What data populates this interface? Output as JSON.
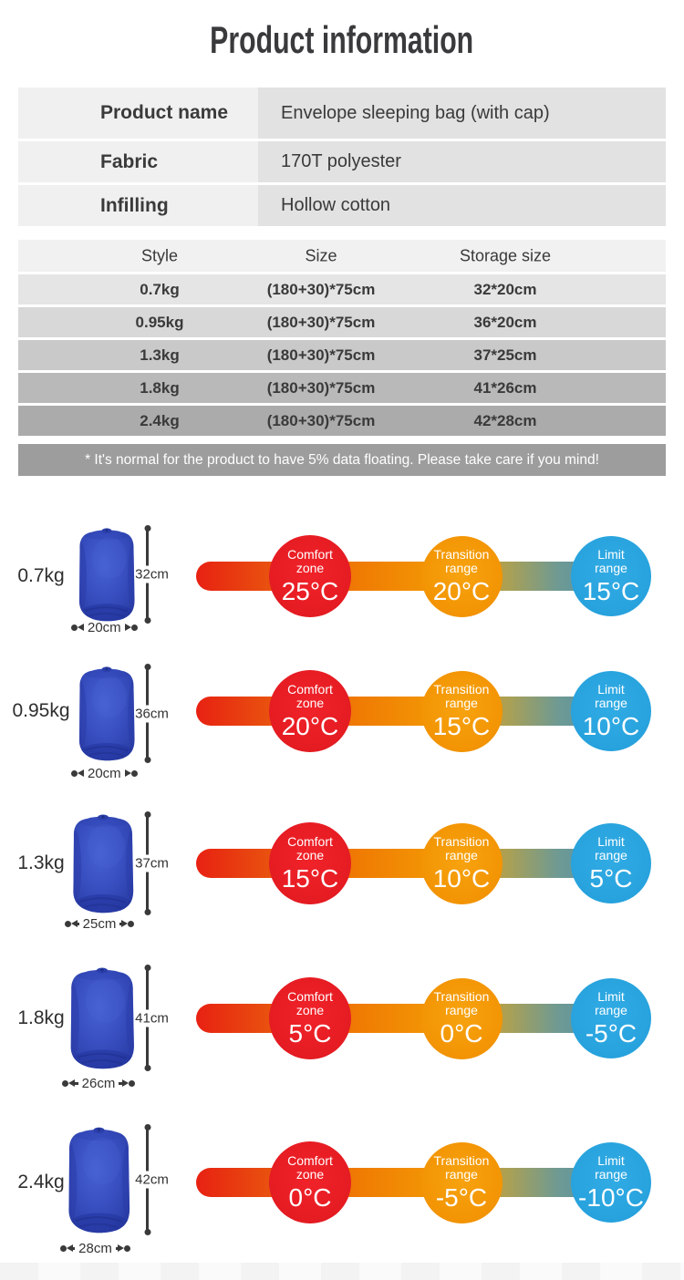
{
  "title": "Product information",
  "info_table": {
    "rows": [
      {
        "label": "Product name",
        "value": "Envelope sleeping bag (with cap)"
      },
      {
        "label": "Fabric",
        "value": "170T polyester"
      },
      {
        "label": "Infilling",
        "value": "Hollow cotton"
      }
    ]
  },
  "size_table": {
    "headers": [
      "Style",
      "Size",
      "Storage size"
    ],
    "rows": [
      [
        "0.7kg",
        "(180+30)*75cm",
        "32*20cm"
      ],
      [
        "0.95kg",
        "(180+30)*75cm",
        "36*20cm"
      ],
      [
        "1.3kg",
        "(180+30)*75cm",
        "37*25cm"
      ],
      [
        "1.8kg",
        "(180+30)*75cm",
        "41*26cm"
      ],
      [
        "2.4kg",
        "(180+30)*75cm",
        "42*28cm"
      ]
    ]
  },
  "note": "* It's normal for the product to have 5% data floating. Please take care if you mind!",
  "product_rows": [
    {
      "weight": "0.7kg",
      "bag_height": "32cm",
      "bag_width": "20cm",
      "comfort": {
        "line1": "Comfort",
        "line2": "zone",
        "temp": "25°C"
      },
      "transition": {
        "line1": "Transition",
        "line2": "range",
        "temp": "20°C"
      },
      "limit": {
        "line1": "Limit",
        "line2": "range",
        "temp": "15°C"
      }
    },
    {
      "weight": "0.95kg",
      "bag_height": "36cm",
      "bag_width": "20cm",
      "comfort": {
        "line1": "Comfort",
        "line2": "zone",
        "temp": "20°C"
      },
      "transition": {
        "line1": "Transition",
        "line2": "range",
        "temp": "15°C"
      },
      "limit": {
        "line1": "Limit",
        "line2": "range",
        "temp": "10°C"
      }
    },
    {
      "weight": "1.3kg",
      "bag_height": "37cm",
      "bag_width": "25cm",
      "comfort": {
        "line1": "Comfort",
        "line2": "zone",
        "temp": "15°C"
      },
      "transition": {
        "line1": "Transition",
        "line2": "range",
        "temp": "10°C"
      },
      "limit": {
        "line1": "Limit",
        "line2": "range",
        "temp": "5°C"
      }
    },
    {
      "weight": "1.8kg",
      "bag_height": "41cm",
      "bag_width": "26cm",
      "comfort": {
        "line1": "Comfort",
        "line2": "zone",
        "temp": "5°C"
      },
      "transition": {
        "line1": "Transition",
        "line2": "range",
        "temp": "0°C"
      },
      "limit": {
        "line1": "Limit",
        "line2": "range",
        "temp": "-5°C"
      }
    },
    {
      "weight": "2.4kg",
      "bag_height": "42cm",
      "bag_width": "28cm",
      "comfort": {
        "line1": "Comfort",
        "line2": "zone",
        "temp": "0°C"
      },
      "transition": {
        "line1": "Transition",
        "line2": "range",
        "temp": "-5°C"
      },
      "limit": {
        "line1": "Limit",
        "line2": "range",
        "temp": "-10°C"
      }
    }
  ],
  "colors": {
    "comfort": "#e61c23",
    "transition": "#f39504",
    "limit": "#28a3de",
    "bag": "#3a53c8",
    "note_bg": "#9d9d9d"
  }
}
